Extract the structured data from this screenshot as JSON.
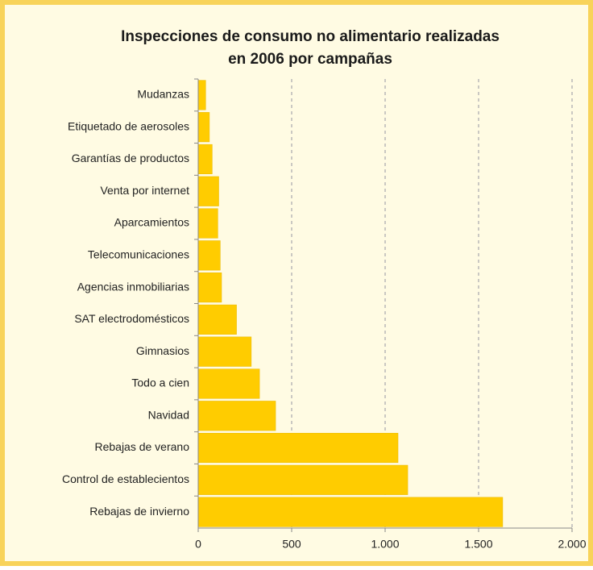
{
  "chart_data": {
    "type": "hbar",
    "title": [
      "Inspecciones de consumo no alimentario realizadas",
      "en 2006 por campañas"
    ],
    "categories": [
      "Mudanzas",
      "Etiquetado de aerosoles",
      "Garantías de productos",
      "Venta por internet",
      "Aparcamientos",
      "Telecomunicaciones",
      "Agencias inmobiliarias",
      "SAT electrodomésticos",
      "Gimnasios",
      "Todo a cien",
      "Navidad",
      "Rebajas de verano",
      "Control de establecientos",
      "Rebajas de invierno"
    ],
    "values": [
      40,
      60,
      75,
      110,
      105,
      118,
      125,
      205,
      284,
      328,
      414,
      1069,
      1121,
      1629
    ],
    "color": "#ffcc00",
    "xlim": [
      0,
      2000
    ],
    "xticks": [
      0,
      500,
      {
        "value": 1000,
        "label": "1.000"
      },
      {
        "value": 1500,
        "label": "1.500"
      },
      {
        "value": 2000,
        "label": "2.000"
      }
    ],
    "grid": true
  }
}
